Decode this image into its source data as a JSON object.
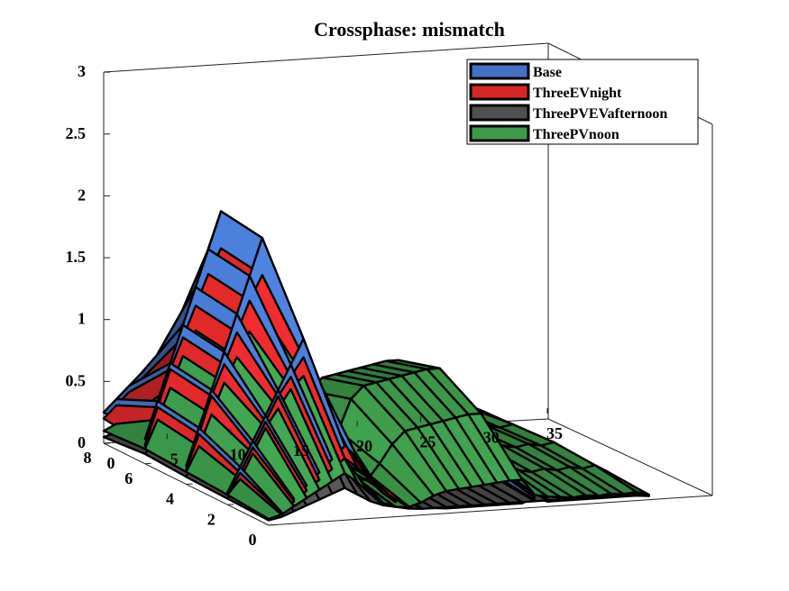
{
  "chart_data": {
    "type": "surface3d",
    "title": "Crossphase: mismatch",
    "xlabel": "",
    "ylabel": "",
    "zlabel": "",
    "xlim": [
      0,
      35
    ],
    "ylim": [
      0,
      8
    ],
    "zlim": [
      0,
      3
    ],
    "x_ticks": [
      0,
      5,
      10,
      15,
      20,
      25,
      30,
      35
    ],
    "y_ticks": [
      0,
      2,
      4,
      6,
      8
    ],
    "z_ticks": [
      "0",
      "0.5",
      "1",
      "1.5",
      "2",
      "2.5",
      "3"
    ],
    "grid": false,
    "legend_position": "top-right",
    "series": [
      {
        "name": "Base",
        "color": "#4472C4",
        "z": [
          [
            0.25,
            0.35,
            0.45,
            0.55,
            0.65,
            0.75,
            0.85,
            0.3,
            0.15,
            0.1,
            0.08,
            0.05,
            0.06,
            0.05,
            0.04,
            0.05,
            0.04,
            0.05,
            0.04,
            0.05,
            0.04,
            0.1,
            0.04,
            0.05,
            0.04,
            0.05,
            0.04,
            0.05,
            0.04,
            0.05,
            0.03
          ],
          [
            0.2,
            0.5,
            0.8,
            1.1,
            1.4,
            1.7,
            2.0,
            1.4,
            0.9,
            0.5,
            0.3,
            0.15,
            0.1,
            0.08,
            0.06,
            0.05,
            0.05,
            0.05,
            0.04,
            0.05,
            0.05,
            0.15,
            0.05,
            0.06,
            0.05,
            0.06,
            0.05,
            0.06,
            0.05,
            0.06,
            0.04
          ],
          [
            0.15,
            0.45,
            0.75,
            1.05,
            1.35,
            1.65,
            1.95,
            1.5,
            1.0,
            0.6,
            0.35,
            0.2,
            0.12,
            0.08,
            0.07,
            0.06,
            0.06,
            0.06,
            0.05,
            0.06,
            0.06,
            0.2,
            0.06,
            0.07,
            0.06,
            0.07,
            0.06,
            0.07,
            0.06,
            0.07,
            0.05
          ],
          [
            0.1,
            0.3,
            0.5,
            0.7,
            0.9,
            1.1,
            1.3,
            1.0,
            0.7,
            0.4,
            0.25,
            0.15,
            0.1,
            0.07,
            0.06,
            0.05,
            0.05,
            0.05,
            0.05,
            0.05,
            0.05,
            0.15,
            0.05,
            0.06,
            0.05,
            0.06,
            0.05,
            0.06,
            0.05,
            0.06,
            0.04
          ],
          [
            0.05,
            0.1,
            0.2,
            0.3,
            0.4,
            0.5,
            0.6,
            0.5,
            0.35,
            0.2,
            0.12,
            0.08,
            0.06,
            0.05,
            0.04,
            0.04,
            0.04,
            0.04,
            0.04,
            0.04,
            0.04,
            0.08,
            0.04,
            0.04,
            0.04,
            0.04,
            0.04,
            0.04,
            0.04,
            0.04,
            0.03
          ]
        ]
      },
      {
        "name": "ThreeEVnight",
        "color": "#D62728",
        "z": [
          [
            0.2,
            0.3,
            0.4,
            0.5,
            0.6,
            0.7,
            0.8,
            0.5,
            0.3,
            0.15,
            0.1,
            0.08,
            0.07,
            0.06,
            0.05,
            0.06,
            0.05,
            0.06,
            0.05,
            0.06,
            0.05,
            0.08,
            0.08,
            0.1,
            0.08,
            0.1,
            0.08,
            0.1,
            0.08,
            0.1,
            0.05
          ],
          [
            0.15,
            0.45,
            0.75,
            1.0,
            1.25,
            1.5,
            1.7,
            1.3,
            0.9,
            0.6,
            0.4,
            0.2,
            0.12,
            0.1,
            0.08,
            0.07,
            0.07,
            0.07,
            0.06,
            0.07,
            0.07,
            0.1,
            0.1,
            0.12,
            0.1,
            0.12,
            0.1,
            0.12,
            0.1,
            0.12,
            0.06
          ],
          [
            0.12,
            0.4,
            0.7,
            0.95,
            1.2,
            1.45,
            1.65,
            1.3,
            0.95,
            0.65,
            0.45,
            0.25,
            0.15,
            0.1,
            0.09,
            0.08,
            0.08,
            0.08,
            0.07,
            0.08,
            0.08,
            0.12,
            0.12,
            0.14,
            0.12,
            0.14,
            0.12,
            0.14,
            0.12,
            0.14,
            0.07
          ],
          [
            0.08,
            0.25,
            0.45,
            0.65,
            0.85,
            1.0,
            1.15,
            0.9,
            0.65,
            0.45,
            0.3,
            0.18,
            0.1,
            0.08,
            0.07,
            0.06,
            0.06,
            0.06,
            0.06,
            0.06,
            0.06,
            0.1,
            0.1,
            0.11,
            0.1,
            0.11,
            0.1,
            0.11,
            0.1,
            0.11,
            0.05
          ],
          [
            0.05,
            0.1,
            0.18,
            0.26,
            0.34,
            0.42,
            0.5,
            0.42,
            0.3,
            0.2,
            0.12,
            0.08,
            0.06,
            0.05,
            0.05,
            0.05,
            0.05,
            0.05,
            0.05,
            0.05,
            0.05,
            0.06,
            0.06,
            0.07,
            0.06,
            0.07,
            0.06,
            0.07,
            0.06,
            0.07,
            0.04
          ]
        ]
      },
      {
        "name": "ThreePVEVafternoon",
        "color": "#505050",
        "z": [
          [
            0.05,
            0.08,
            0.1,
            0.15,
            0.2,
            0.25,
            0.3,
            0.2,
            0.15,
            0.1,
            0.08,
            0.06,
            0.05,
            0.05,
            0.04,
            0.05,
            0.04,
            0.05,
            0.04,
            0.05,
            0.04,
            0.05,
            0.04,
            0.05,
            0.04,
            0.05,
            0.04,
            0.05,
            0.04,
            0.05,
            0.03
          ],
          [
            0.08,
            0.2,
            0.4,
            0.6,
            0.8,
            1.0,
            1.15,
            0.8,
            0.5,
            0.3,
            0.2,
            0.15,
            0.12,
            0.1,
            0.09,
            0.08,
            0.08,
            0.08,
            0.07,
            0.08,
            0.08,
            0.1,
            0.08,
            0.1,
            0.08,
            0.1,
            0.08,
            0.1,
            0.08,
            0.1,
            0.05
          ],
          [
            0.06,
            0.25,
            0.45,
            0.65,
            0.85,
            1.05,
            1.2,
            0.85,
            0.55,
            0.35,
            0.22,
            0.16,
            0.12,
            0.1,
            0.09,
            0.08,
            0.08,
            0.08,
            0.07,
            0.08,
            0.08,
            0.1,
            0.08,
            0.1,
            0.08,
            0.1,
            0.08,
            0.1,
            0.08,
            0.1,
            0.05
          ],
          [
            0.05,
            0.15,
            0.3,
            0.45,
            0.6,
            0.75,
            0.85,
            0.6,
            0.4,
            0.25,
            0.16,
            0.12,
            0.1,
            0.08,
            0.07,
            0.07,
            0.07,
            0.07,
            0.06,
            0.07,
            0.07,
            0.08,
            0.07,
            0.08,
            0.07,
            0.08,
            0.07,
            0.08,
            0.07,
            0.08,
            0.04
          ],
          [
            0.04,
            0.06,
            0.1,
            0.14,
            0.18,
            0.22,
            0.26,
            0.2,
            0.14,
            0.1,
            0.08,
            0.06,
            0.05,
            0.05,
            0.05,
            0.05,
            0.05,
            0.05,
            0.05,
            0.05,
            0.05,
            0.05,
            0.05,
            0.05,
            0.05,
            0.05,
            0.05,
            0.05,
            0.05,
            0.05,
            0.03
          ]
        ]
      },
      {
        "name": "ThreePVnoon",
        "color": "#3C9A4A",
        "z": [
          [
            0.1,
            0.15,
            0.2,
            0.3,
            0.4,
            0.5,
            0.6,
            0.4,
            0.25,
            0.15,
            0.1,
            0.08,
            0.07,
            0.06,
            0.05,
            0.06,
            0.05,
            0.06,
            0.05,
            0.06,
            0.05,
            0.08,
            0.06,
            0.08,
            0.06,
            0.08,
            0.06,
            0.08,
            0.06,
            0.08,
            0.05
          ],
          [
            0.12,
            0.35,
            0.6,
            0.85,
            1.05,
            1.25,
            1.45,
            1.0,
            0.6,
            0.3,
            0.15,
            0.12,
            0.3,
            0.5,
            0.6,
            0.62,
            0.64,
            0.66,
            0.68,
            0.7,
            0.7,
            0.2,
            0.15,
            0.12,
            0.1,
            0.12,
            0.1,
            0.12,
            0.1,
            0.12,
            0.06
          ],
          [
            0.1,
            0.3,
            0.55,
            0.8,
            1.0,
            1.2,
            1.35,
            1.0,
            0.65,
            0.35,
            0.18,
            0.14,
            0.35,
            0.6,
            0.7,
            0.72,
            0.74,
            0.76,
            0.78,
            0.8,
            0.8,
            0.25,
            0.18,
            0.14,
            0.12,
            0.14,
            0.12,
            0.14,
            0.12,
            0.14,
            0.07
          ],
          [
            0.08,
            0.2,
            0.4,
            0.6,
            0.75,
            0.9,
            1.0,
            0.75,
            0.5,
            0.28,
            0.15,
            0.12,
            0.25,
            0.4,
            0.5,
            0.52,
            0.54,
            0.56,
            0.58,
            0.6,
            0.6,
            0.2,
            0.15,
            0.12,
            0.1,
            0.12,
            0.1,
            0.12,
            0.1,
            0.12,
            0.06
          ],
          [
            0.05,
            0.08,
            0.14,
            0.2,
            0.26,
            0.32,
            0.38,
            0.3,
            0.2,
            0.12,
            0.08,
            0.07,
            0.1,
            0.15,
            0.18,
            0.19,
            0.2,
            0.21,
            0.22,
            0.23,
            0.23,
            0.1,
            0.08,
            0.07,
            0.06,
            0.07,
            0.06,
            0.07,
            0.06,
            0.07,
            0.04
          ]
        ]
      }
    ]
  }
}
